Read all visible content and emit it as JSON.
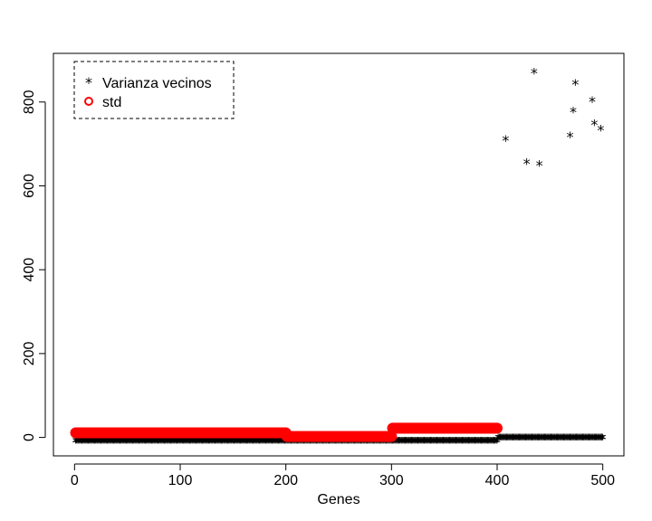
{
  "chart_data": {
    "type": "scatter",
    "title": "",
    "xlabel": "Genes",
    "ylabel": "",
    "xlim": [
      -20,
      520
    ],
    "ylim": [
      -44,
      916
    ],
    "x_ticks": [
      0,
      100,
      200,
      300,
      400,
      500
    ],
    "x_tick_labels": [
      "0",
      "100",
      "200",
      "300",
      "400",
      "500"
    ],
    "y_ticks": [
      0,
      200,
      400,
      600,
      800
    ],
    "y_tick_labels": [
      "0",
      "200",
      "400",
      "600",
      "800"
    ],
    "grid": false,
    "legend": {
      "position": "top-left",
      "entries": [
        {
          "label": "Varianza vecinos",
          "marker": "*",
          "color": "#000000"
        },
        {
          "label": "std",
          "marker": "o",
          "color": "#ff0000"
        }
      ]
    },
    "series": [
      {
        "name": "Varianza vecinos",
        "marker": "*",
        "color": "#000000",
        "segments": [
          {
            "x_from": 1,
            "x_to": 400,
            "y": 0
          },
          {
            "x_from": 401,
            "x_to": 500,
            "y": 8
          }
        ],
        "outliers": [
          {
            "x": 408,
            "y": 720
          },
          {
            "x": 428,
            "y": 665
          },
          {
            "x": 435,
            "y": 880
          },
          {
            "x": 440,
            "y": 660
          },
          {
            "x": 469,
            "y": 728
          },
          {
            "x": 472,
            "y": 788
          },
          {
            "x": 474,
            "y": 853
          },
          {
            "x": 490,
            "y": 812
          },
          {
            "x": 492,
            "y": 757
          },
          {
            "x": 498,
            "y": 745
          }
        ]
      },
      {
        "name": "std",
        "marker": "o",
        "color": "#ff0000",
        "segments": [
          {
            "x_from": 1,
            "x_to": 200,
            "y": 11
          },
          {
            "x_from": 201,
            "x_to": 300,
            "y": 2
          },
          {
            "x_from": 301,
            "x_to": 400,
            "y": 22
          }
        ]
      }
    ]
  }
}
